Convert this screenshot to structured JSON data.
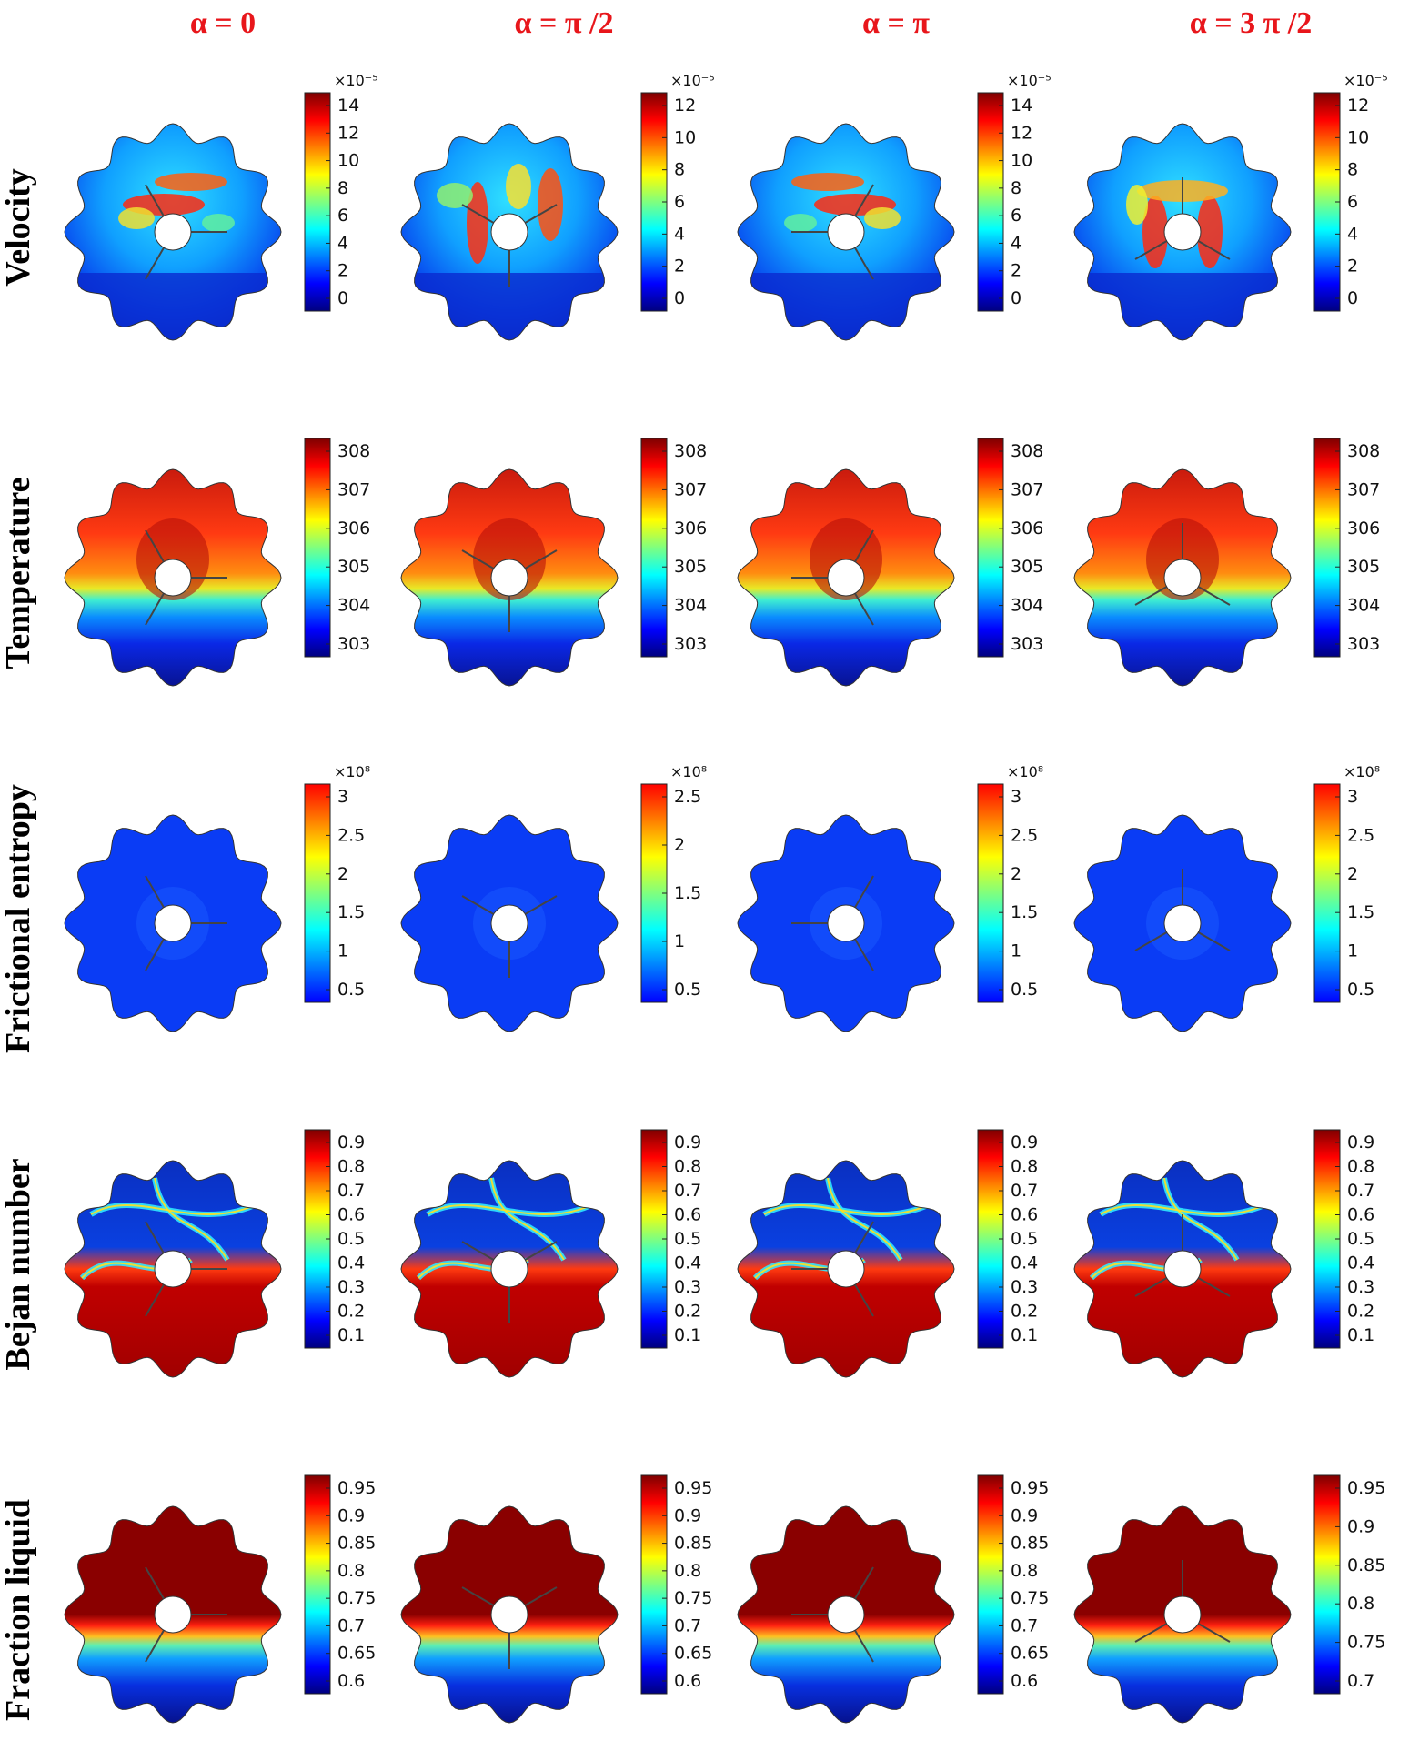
{
  "columns": [
    {
      "label": "α   =   0",
      "angle": 0
    },
    {
      "label": "α   =   π /2",
      "angle": 90
    },
    {
      "label": "α   =   π",
      "angle": 180
    },
    {
      "label": "α   =   3 π /2",
      "angle": 270
    }
  ],
  "rows": [
    {
      "label": "Velocity",
      "field": "velocity",
      "colorbars": [
        {
          "multiplier": "×10⁻⁵",
          "ticks": [
            "14",
            "12",
            "10",
            "8",
            "6",
            "4",
            "2",
            "0"
          ]
        },
        {
          "multiplier": "×10⁻⁵",
          "ticks": [
            "12",
            "10",
            "8",
            "6",
            "4",
            "2",
            "0"
          ]
        },
        {
          "multiplier": "×10⁻⁵",
          "ticks": [
            "14",
            "12",
            "10",
            "8",
            "6",
            "4",
            "2",
            "0"
          ]
        },
        {
          "multiplier": "×10⁻⁵",
          "ticks": [
            "12",
            "10",
            "8",
            "6",
            "4",
            "2",
            "0"
          ]
        }
      ]
    },
    {
      "label": "Temperature",
      "field": "temperature",
      "colorbars": [
        {
          "multiplier": "",
          "ticks": [
            "308",
            "307",
            "306",
            "305",
            "304",
            "303"
          ]
        },
        {
          "multiplier": "",
          "ticks": [
            "308",
            "307",
            "306",
            "305",
            "304",
            "303"
          ]
        },
        {
          "multiplier": "",
          "ticks": [
            "308",
            "307",
            "306",
            "305",
            "304",
            "303"
          ]
        },
        {
          "multiplier": "",
          "ticks": [
            "308",
            "307",
            "306",
            "305",
            "304",
            "303"
          ]
        }
      ]
    },
    {
      "label": "Frictional entropy",
      "field": "entropy",
      "colorbars": [
        {
          "multiplier": "×10⁸",
          "ticks": [
            "3",
            "2.5",
            "2",
            "1.5",
            "1",
            "0.5"
          ]
        },
        {
          "multiplier": "×10⁸",
          "ticks": [
            "2.5",
            "2",
            "1.5",
            "1",
            "0.5"
          ]
        },
        {
          "multiplier": "×10⁸",
          "ticks": [
            "3",
            "2.5",
            "2",
            "1.5",
            "1",
            "0.5"
          ]
        },
        {
          "multiplier": "×10⁸",
          "ticks": [
            "3",
            "2.5",
            "2",
            "1.5",
            "1",
            "0.5"
          ]
        }
      ]
    },
    {
      "label": "Bejan  number",
      "field": "bejan",
      "colorbars": [
        {
          "multiplier": "",
          "ticks": [
            "0.9",
            "0.8",
            "0.7",
            "0.6",
            "0.5",
            "0.4",
            "0.3",
            "0.2",
            "0.1"
          ]
        },
        {
          "multiplier": "",
          "ticks": [
            "0.9",
            "0.8",
            "0.7",
            "0.6",
            "0.5",
            "0.4",
            "0.3",
            "0.2",
            "0.1"
          ]
        },
        {
          "multiplier": "",
          "ticks": [
            "0.9",
            "0.8",
            "0.7",
            "0.6",
            "0.5",
            "0.4",
            "0.3",
            "0.2",
            "0.1"
          ]
        },
        {
          "multiplier": "",
          "ticks": [
            "0.9",
            "0.8",
            "0.7",
            "0.6",
            "0.5",
            "0.4",
            "0.3",
            "0.2",
            "0.1"
          ]
        }
      ]
    },
    {
      "label": "Fraction liquid",
      "field": "fraction",
      "colorbars": [
        {
          "multiplier": "",
          "ticks": [
            "0.95",
            "0.9",
            "0.85",
            "0.8",
            "0.75",
            "0.7",
            "0.65",
            "0.6"
          ]
        },
        {
          "multiplier": "",
          "ticks": [
            "0.95",
            "0.9",
            "0.85",
            "0.8",
            "0.75",
            "0.7",
            "0.65",
            "0.6"
          ]
        },
        {
          "multiplier": "",
          "ticks": [
            "0.95",
            "0.9",
            "0.85",
            "0.8",
            "0.75",
            "0.7",
            "0.65",
            "0.6"
          ]
        },
        {
          "multiplier": "",
          "ticks": [
            "0.95",
            "0.9",
            "0.85",
            "0.8",
            "0.75",
            "0.7"
          ]
        }
      ]
    }
  ],
  "colors": {
    "header_red": "#e8161b",
    "jet": [
      "#00007f",
      "#0000ff",
      "#007fff",
      "#00ffff",
      "#7fff7f",
      "#ffff00",
      "#ff7f00",
      "#ff0000",
      "#7f0000"
    ],
    "entropy_scale": [
      "#0000ff",
      "#007fff",
      "#00ffff",
      "#7fff7f",
      "#ffff00",
      "#ff7f00",
      "#ff0000"
    ]
  }
}
